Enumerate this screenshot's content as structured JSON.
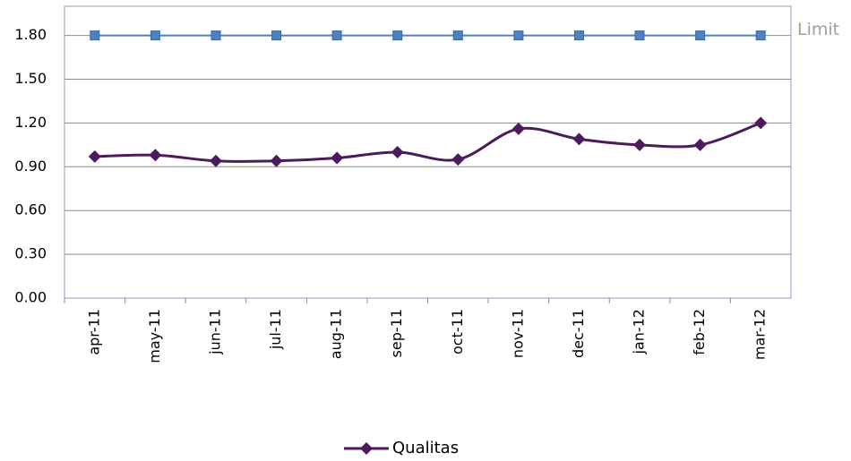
{
  "chart_data": {
    "type": "line",
    "categories": [
      "apr-11",
      "may-11",
      "jun-11",
      "jul-11",
      "aug-11",
      "sep-11",
      "oct-11",
      "nov-11",
      "dec-11",
      "jan-12",
      "feb-12",
      "mar-12"
    ],
    "series": [
      {
        "name": "Limit",
        "color": "#4f81bd",
        "marker": "square",
        "values": [
          1.8,
          1.8,
          1.8,
          1.8,
          1.8,
          1.8,
          1.8,
          1.8,
          1.8,
          1.8,
          1.8,
          1.8
        ]
      },
      {
        "name": "Qualitas",
        "color": "#4b1b5c",
        "marker": "diamond",
        "values": [
          0.97,
          0.98,
          0.94,
          0.94,
          0.96,
          1.0,
          0.95,
          1.16,
          1.09,
          1.05,
          1.05,
          1.2
        ]
      }
    ],
    "ylim": [
      0,
      2.0
    ],
    "yticks": [
      {
        "value": 0,
        "label": "0.00"
      },
      {
        "value": 0.3,
        "label": "0.30"
      },
      {
        "value": 0.6,
        "label": "0.60"
      },
      {
        "value": 0.9,
        "label": "0.90"
      },
      {
        "value": 1.2,
        "label": "1.20"
      },
      {
        "value": 1.5,
        "label": "1.50"
      },
      {
        "value": 1.8,
        "label": "1.80"
      }
    ],
    "grid": true
  }
}
